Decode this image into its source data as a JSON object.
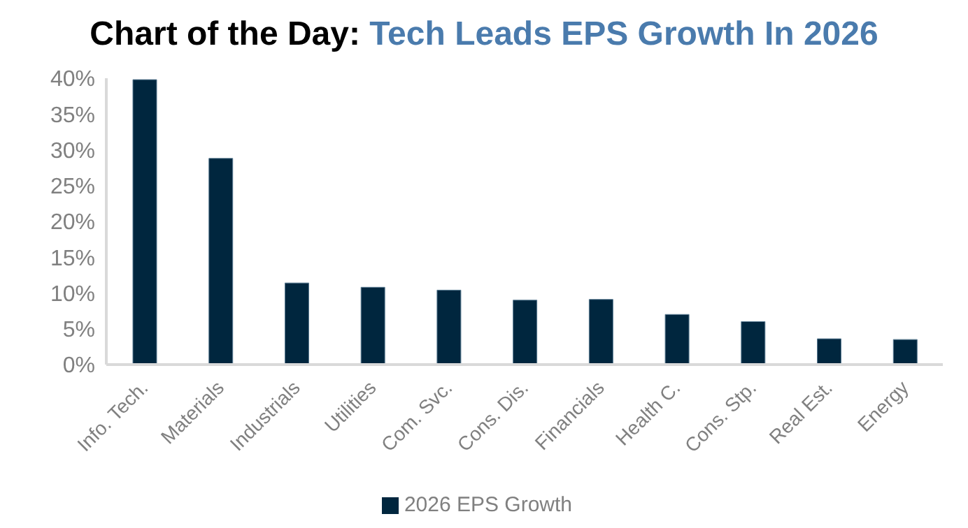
{
  "chart_data": {
    "type": "bar",
    "title": "Chart of the Day:",
    "subtitle": "Tech Leads EPS Growth In 2026",
    "categories": [
      "Info. Tech.",
      "Materials",
      "Industrials",
      "Utilities",
      "Com. Svc.",
      "Cons. Dis.",
      "Financials",
      "Health C.",
      "Cons. Stp.",
      "Real Est.",
      "Energy"
    ],
    "series": [
      {
        "name": "2026 EPS Growth",
        "color": "#00263e",
        "values": [
          39.8,
          28.8,
          11.4,
          10.8,
          10.4,
          9.0,
          9.1,
          7.0,
          6.0,
          3.6,
          3.5
        ]
      }
    ],
    "ylim": [
      0,
      40
    ],
    "yticks": [
      {
        "value": 0,
        "label": "0%"
      },
      {
        "value": 5,
        "label": "5%"
      },
      {
        "value": 10,
        "label": "10%"
      },
      {
        "value": 15,
        "label": "15%"
      },
      {
        "value": 20,
        "label": "20%"
      },
      {
        "value": 25,
        "label": "25%"
      },
      {
        "value": 30,
        "label": "30%"
      },
      {
        "value": 35,
        "label": "35%"
      },
      {
        "value": 40,
        "label": "40%"
      }
    ],
    "grid": false,
    "legend": "bottom"
  }
}
